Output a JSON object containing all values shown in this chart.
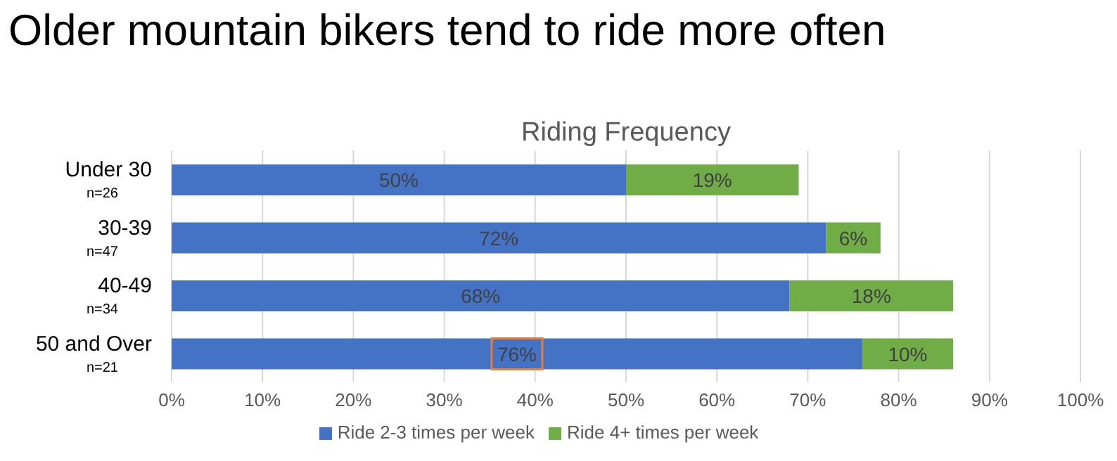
{
  "chart_data": {
    "type": "bar",
    "orientation": "horizontal",
    "stacked": true,
    "title": "Older mountain bikers tend to ride more often",
    "subtitle": "Riding Frequency",
    "categories": [
      "Under 30\n$_{n=26}$",
      "30-39\n$_{n=47}$",
      "40-49\n$_{n=34}$",
      "50 and Over\n$_{n=21}$"
    ],
    "series": [
      {
        "name": "Ride 2-3 times per week",
        "color": "#4472c4",
        "values": [
          50,
          72,
          68,
          76
        ],
        "value_labels": [
          "50%",
          "72%",
          "68%",
          "76%"
        ]
      },
      {
        "name": "Ride 4+ times per week",
        "color": "#70ad47",
        "values": [
          19,
          6,
          18,
          10
        ],
        "value_labels": [
          "19%",
          "6%",
          "18%",
          "10%"
        ]
      }
    ],
    "xlim": [
      0,
      100
    ],
    "xticks": [
      {
        "value": 0,
        "label": "0%"
      },
      {
        "value": 10,
        "label": "10%"
      },
      {
        "value": 20,
        "label": "20%"
      },
      {
        "value": 30,
        "label": "30%"
      },
      {
        "value": 40,
        "label": "40%"
      },
      {
        "value": 50,
        "label": "50%"
      },
      {
        "value": 60,
        "label": "60%"
      },
      {
        "value": 70,
        "label": "70%"
      },
      {
        "value": 80,
        "label": "80%"
      },
      {
        "value": 90,
        "label": "90%"
      },
      {
        "value": 100,
        "label": "100%"
      }
    ],
    "grid": "x",
    "legend": "bottom"
  }
}
